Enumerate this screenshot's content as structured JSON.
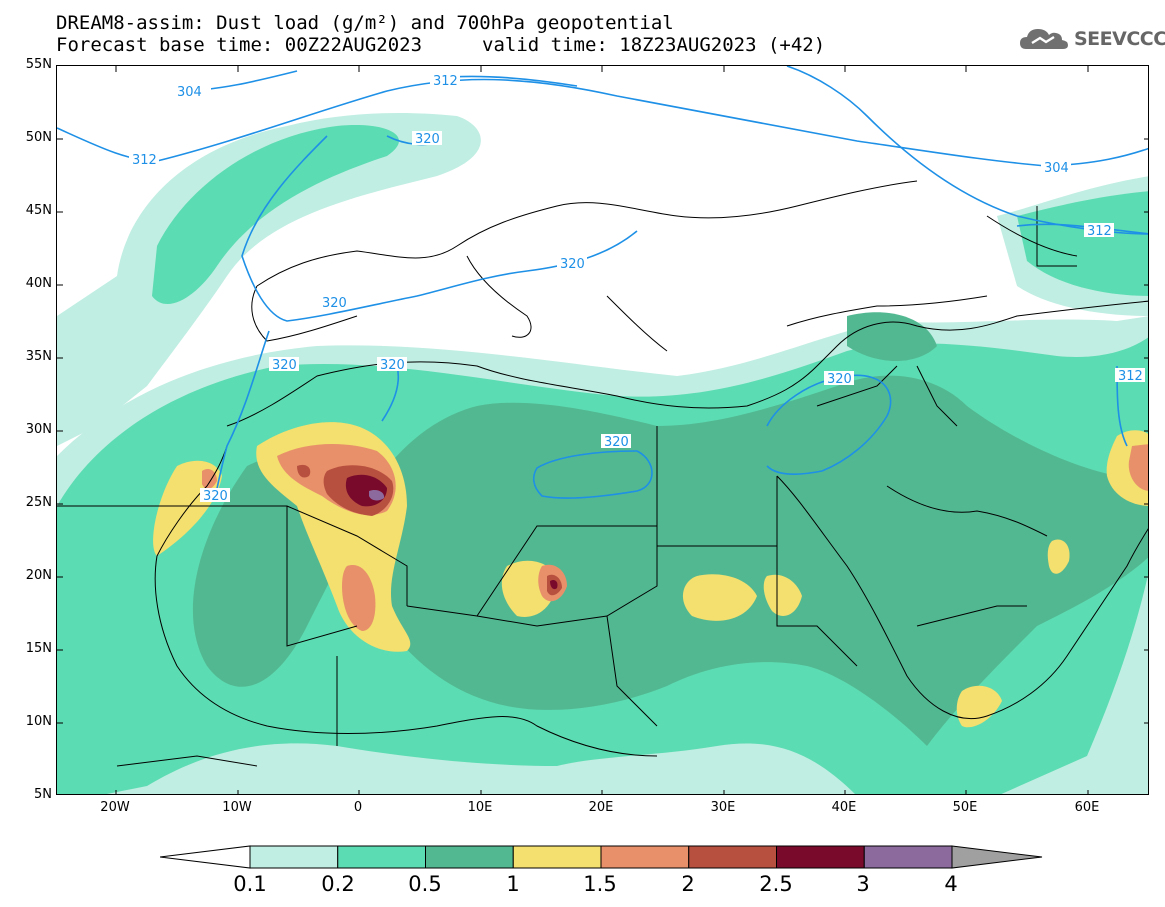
{
  "title_line1": "DREAM8-assim: Dust load (g/m²) and 700hPa geopotential",
  "title_base": "Forecast base time: 00Z22AUG2023",
  "title_valid": "valid time: 18Z23AUG2023 (+42)",
  "logo_text": "SEEVCCC",
  "lat_labels": [
    "55N",
    "50N",
    "45N",
    "40N",
    "35N",
    "30N",
    "25N",
    "20N",
    "15N",
    "10N",
    "5N"
  ],
  "lon_labels": [
    "20W",
    "10W",
    "0",
    "10E",
    "20E",
    "30E",
    "40E",
    "50E",
    "60E"
  ],
  "contour_labels": [
    "304",
    "312",
    "320",
    "320",
    "312",
    "320",
    "320",
    "320",
    "320",
    "320",
    "304",
    "312",
    "312"
  ],
  "colorbar": {
    "ticks": [
      "0.1",
      "0.2",
      "0.5",
      "1",
      "1.5",
      "2",
      "2.5",
      "3",
      "4"
    ],
    "colors": [
      "#c0eee2",
      "#5cdcb2",
      "#52b892",
      "#f3e06e",
      "#e8906a",
      "#b8503f",
      "#7a0a2c",
      "#8c6a9e"
    ],
    "over_color": "#a0a0a0"
  },
  "palette": {
    "contour": "#1e90e6",
    "border": "#000000"
  }
}
